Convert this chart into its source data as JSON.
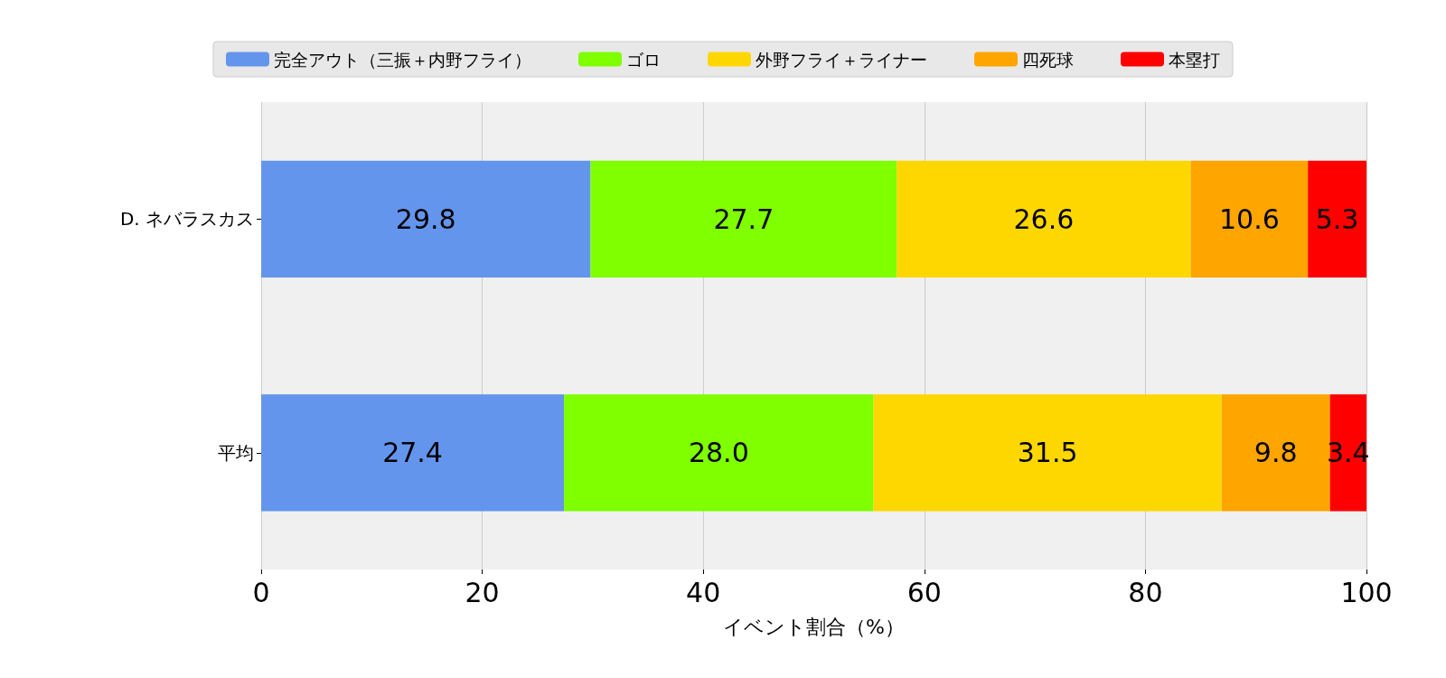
{
  "chart_data": {
    "type": "bar",
    "orientation": "horizontal",
    "stacked": true,
    "categories": [
      "D. ネバラスカス",
      "平均"
    ],
    "series": [
      {
        "name": "完全アウト（三振＋内野フライ）",
        "color": "#6495ed",
        "values": [
          29.8,
          27.4
        ],
        "value_labels": [
          "29.8",
          "27.4"
        ]
      },
      {
        "name": "ゴロ",
        "color": "#7fff00",
        "values": [
          27.7,
          28.0
        ],
        "value_labels": [
          "27.7",
          "28.0"
        ]
      },
      {
        "name": "外野フライ＋ライナー",
        "color": "#ffd700",
        "values": [
          26.6,
          31.5
        ],
        "value_labels": [
          "26.6",
          "31.5"
        ]
      },
      {
        "name": "四死球",
        "color": "#ffa500",
        "values": [
          10.6,
          9.8
        ],
        "value_labels": [
          "10.6",
          "9.8"
        ]
      },
      {
        "name": "本塁打",
        "color": "#ff0000",
        "values": [
          5.3,
          3.4
        ],
        "value_labels": [
          "5.3",
          "3.4"
        ]
      }
    ],
    "xlabel": "イベント割合（%）",
    "xlim": [
      0,
      100
    ],
    "xticks": [
      0,
      20,
      40,
      60,
      80,
      100
    ],
    "grid": "x",
    "legend": "top"
  }
}
